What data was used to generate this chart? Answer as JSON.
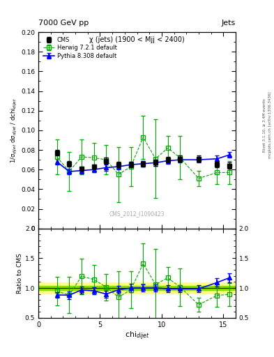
{
  "title_top": "7000 GeV pp",
  "title_right": "Jets",
  "annotation": "χ (jets) (1900 < Mjj < 2400)",
  "watermark": "CMS_2012_I1090423",
  "rivet_text": "Rivet 3.1.10, ≥ 3.4M events",
  "arxiv_text": "mcplots.cern.ch [arXiv:1306.3436]",
  "xlabel": "chi$_{dijet}$",
  "ylabel": "1/σ$_{dijet}$ dσ$_{dijet}$ / dchi$_{dijet}$",
  "ylabel_ratio": "Ratio to CMS",
  "xlim": [
    0,
    16
  ],
  "ylim_main": [
    0,
    0.2
  ],
  "ylim_ratio": [
    0.5,
    2.0
  ],
  "yticks_main": [
    0,
    0.02,
    0.04,
    0.06,
    0.08,
    0.1,
    0.12,
    0.14,
    0.16,
    0.18,
    0.2
  ],
  "yticks_ratio": [
    0.5,
    1.0,
    1.5,
    2.0
  ],
  "xticks": [
    0,
    5,
    10,
    15
  ],
  "cms_x": [
    1.5,
    2.5,
    3.5,
    4.5,
    5.5,
    6.5,
    7.5,
    8.5,
    9.5,
    10.5,
    11.5,
    13.0,
    14.5,
    15.5
  ],
  "cms_y": [
    0.077,
    0.066,
    0.061,
    0.063,
    0.069,
    0.065,
    0.065,
    0.066,
    0.067,
    0.07,
    0.071,
    0.071,
    0.065,
    0.064
  ],
  "cms_yerr": [
    0.003,
    0.003,
    0.002,
    0.002,
    0.003,
    0.003,
    0.003,
    0.003,
    0.003,
    0.003,
    0.003,
    0.003,
    0.003,
    0.003
  ],
  "herwig_x": [
    1.5,
    2.5,
    3.5,
    4.5,
    5.5,
    6.5,
    7.5,
    8.5,
    9.5,
    10.5,
    11.5,
    13.0,
    14.5,
    15.5
  ],
  "herwig_y": [
    0.073,
    0.058,
    0.073,
    0.072,
    0.07,
    0.055,
    0.063,
    0.093,
    0.071,
    0.082,
    0.072,
    0.051,
    0.057,
    0.057
  ],
  "herwig_yerr": [
    0.018,
    0.02,
    0.018,
    0.015,
    0.015,
    0.028,
    0.02,
    0.022,
    0.04,
    0.012,
    0.022,
    0.008,
    0.012,
    0.012
  ],
  "pythia_x": [
    1.5,
    2.5,
    3.5,
    4.5,
    5.5,
    6.5,
    7.5,
    8.5,
    9.5,
    10.5,
    11.5,
    13.0,
    14.5,
    15.5
  ],
  "pythia_y": [
    0.068,
    0.058,
    0.059,
    0.06,
    0.062,
    0.063,
    0.065,
    0.066,
    0.067,
    0.069,
    0.07,
    0.07,
    0.071,
    0.075
  ],
  "pythia_yerr": [
    0.003,
    0.003,
    0.003,
    0.003,
    0.003,
    0.003,
    0.003,
    0.003,
    0.003,
    0.003,
    0.003,
    0.003,
    0.003,
    0.003
  ],
  "cms_color": "#000000",
  "herwig_color": "#00aa00",
  "pythia_color": "#0000ff",
  "band_inner_color": "#88dd00",
  "band_outer_color": "#ffff88",
  "bg_color": "#ffffff"
}
